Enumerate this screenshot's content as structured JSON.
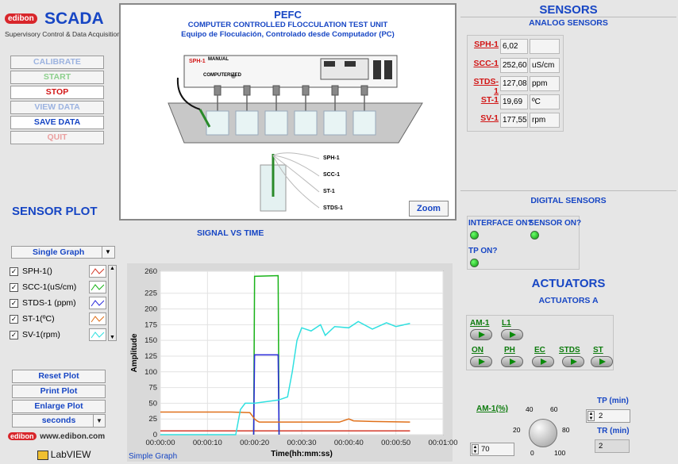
{
  "brand": {
    "prefix": "edibon",
    "name": "SCADA",
    "subtitle": "Supervisory Control & Data Acquisition",
    "web": "www.edibon.com",
    "labview": "LabVIEW"
  },
  "nav": {
    "calibrate": "CALIBRATE",
    "start": "START",
    "stop": "STOP",
    "view_data": "VIEW DATA",
    "save_data": "SAVE DATA",
    "quit": "QUIT"
  },
  "header": {
    "title": "PEFC",
    "line1": "COMPUTER CONTROLLED FLOCCULATION TEST UNIT",
    "line2": "Equipo de Floculación, Controlado desde Computador (PC)"
  },
  "diagram": {
    "sph_tag": "SPH-1",
    "manual": "MANUAL",
    "computerized": "COMPUTERIZED",
    "probes": [
      "SPH-1",
      "SCC-1",
      "ST-1",
      "STDS-1"
    ],
    "zoom": "Zoom"
  },
  "sensors": {
    "title": "SENSORS",
    "analog_title": "ANALOG SENSORS",
    "items": [
      {
        "tag": "SPH-1",
        "value": "6,02",
        "unit": ""
      },
      {
        "tag": "SCC-1",
        "value": "252,60",
        "unit": "uS/cm"
      },
      {
        "tag": "STDS-1",
        "value": "127,08",
        "unit": "ppm"
      },
      {
        "tag": "ST-1",
        "value": "19,69",
        "unit": "ºC"
      },
      {
        "tag": "SV-1",
        "value": "177,55",
        "unit": "rpm"
      }
    ]
  },
  "digital": {
    "title": "DIGITAL SENSORS",
    "interface_on": "INTERFACE ON?",
    "sensor_on": "SENSOR ON?",
    "tp_on": "TP ON?"
  },
  "actuators": {
    "title": "ACTUATORS",
    "group_title": "ACTUATORS A",
    "row1": [
      "AM-1",
      "L1"
    ],
    "row2": [
      "ON",
      "PH",
      "EC",
      "STDS",
      "ST"
    ],
    "am1_pct_label": "AM-1(%)",
    "am1_value": "70",
    "knob_ticks": [
      "0",
      "20",
      "40",
      "60",
      "80",
      "100"
    ],
    "tp_label": "TP (min)",
    "tp_value": "2",
    "tr_label": "TR (min)",
    "tr_value": "2"
  },
  "plot": {
    "section": "SENSOR PLOT",
    "title": "SIGNAL VS TIME",
    "mode": "Single Graph",
    "legend": [
      "SPH-1()",
      "SCC-1(uS/cm)",
      "STDS-1 (ppm)",
      "ST-1(ºC)",
      "SV-1(rpm)"
    ],
    "reset": "Reset Plot",
    "print": "Print Plot",
    "enlarge": "Enlarge Plot",
    "time_unit": "seconds",
    "footer": "Simple Graph",
    "ylabel": "Amplitude",
    "xlabel": "Time(hh:mm:ss)",
    "colors": {
      "sph": "#d43a2a",
      "scc": "#19b319",
      "stds": "#2a2adb",
      "st": "#e0701a",
      "sv": "#30e0e0"
    }
  },
  "chart_data": {
    "type": "line",
    "title": "SIGNAL VS TIME",
    "xlabel": "Time(hh:mm:ss)",
    "ylabel": "Amplitude",
    "ylim": [
      0,
      260
    ],
    "xlim": [
      0,
      60
    ],
    "yticks": [
      0,
      25,
      50,
      75,
      100,
      125,
      150,
      175,
      200,
      225,
      260
    ],
    "xticks": [
      "00:00:00",
      "00:00:10",
      "00:00:20",
      "00:00:30",
      "00:00:40",
      "00:00:50",
      "00:01:00"
    ],
    "series": [
      {
        "name": "SPH-1()",
        "x": [
          0,
          15,
          20,
          25,
          53
        ],
        "y": [
          6,
          6,
          6,
          6,
          6
        ]
      },
      {
        "name": "SCC-1(uS/cm)",
        "x": [
          19.8,
          20,
          25,
          25.2
        ],
        "y": [
          0,
          252,
          253,
          0
        ]
      },
      {
        "name": "STDS-1 (ppm)",
        "x": [
          19.8,
          20,
          25,
          25.2
        ],
        "y": [
          0,
          127,
          127,
          0
        ]
      },
      {
        "name": "ST-1(ºC)",
        "x": [
          0,
          15,
          19,
          19.5,
          20,
          20.5,
          21,
          25,
          28,
          38,
          40,
          41,
          45,
          53
        ],
        "y": [
          36,
          36,
          35,
          30,
          25,
          22,
          20,
          20,
          20,
          20,
          25,
          22,
          21,
          20
        ]
      },
      {
        "name": "SV-1(rpm)",
        "x": [
          0,
          16,
          17,
          18,
          20,
          22,
          25,
          27,
          28,
          29,
          30,
          32,
          34,
          35,
          37,
          40,
          42,
          45,
          48,
          50,
          53
        ],
        "y": [
          0,
          0,
          40,
          50,
          50,
          52,
          55,
          60,
          100,
          150,
          170,
          165,
          175,
          158,
          172,
          170,
          180,
          168,
          178,
          172,
          177
        ]
      }
    ]
  }
}
